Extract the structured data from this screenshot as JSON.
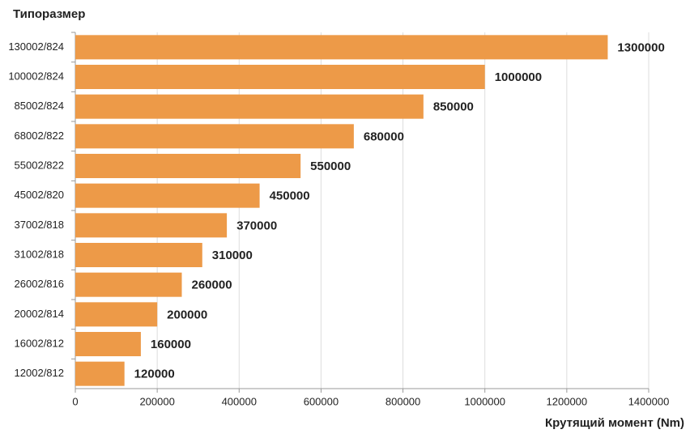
{
  "chart_data": {
    "type": "bar",
    "orientation": "horizontal",
    "y_label": "Типоразмер",
    "x_label": "Крутящий момент (Nm)",
    "categories": [
      "130002/824",
      "100002/824",
      "85002/824",
      "68002/822",
      "55002/822",
      "45002/820",
      "37002/818",
      "31002/818",
      "26002/816",
      "20002/814",
      "16002/812",
      "12002/812"
    ],
    "values": [
      1300000,
      1000000,
      850000,
      680000,
      550000,
      450000,
      370000,
      310000,
      260000,
      200000,
      160000,
      120000
    ],
    "color": "#ed9a48",
    "xlim": [
      0,
      1400000
    ],
    "xticks": [
      0,
      200000,
      400000,
      600000,
      800000,
      1000000,
      1200000,
      1400000
    ],
    "grid": true
  }
}
